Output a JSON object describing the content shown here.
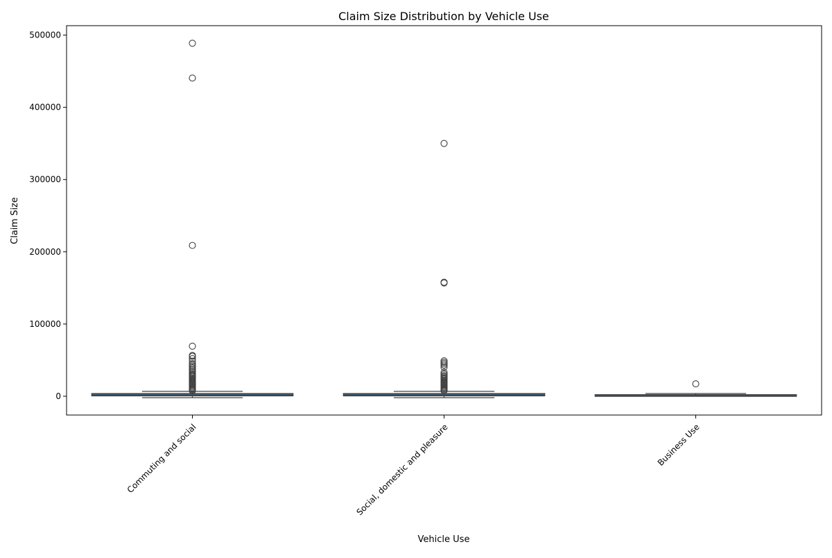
{
  "chart_data": {
    "type": "box",
    "title": "Claim Size Distribution by Vehicle Use",
    "xlabel": "Vehicle Use",
    "ylabel": "Claim Size",
    "categories": [
      "Commuting and social",
      "Social, domestic and pleasure",
      "Business Use"
    ],
    "ylim": [
      -26000,
      513000
    ],
    "yticks": [
      0,
      100000,
      200000,
      300000,
      400000,
      500000
    ],
    "ytick_labels": [
      "0",
      "100000",
      "200000",
      "300000",
      "400000",
      "500000"
    ],
    "box_color": "#3e6f94",
    "grid": false,
    "legend": "none",
    "series": [
      {
        "whisker_low": -2000,
        "q1": 500,
        "median": 1800,
        "q3": 3800,
        "whisker_high": 6800,
        "outliers": [
          488700,
          440500,
          208800,
          69300,
          56500,
          55200,
          52000,
          48500,
          45000,
          43000,
          41000,
          39000,
          37000,
          35000,
          33000,
          31000,
          29500,
          28000,
          26500,
          25000,
          23500,
          22000,
          20500,
          19000,
          17500,
          16000,
          14500,
          13000,
          11500,
          10000,
          8800,
          7500
        ]
      },
      {
        "whisker_low": -2000,
        "q1": 500,
        "median": 1800,
        "q3": 3800,
        "whisker_high": 6800,
        "outliers": [
          350000,
          157800,
          156800,
          49000,
          47000,
          45000,
          43000,
          40000,
          33000,
          30500,
          28500,
          27000,
          25500,
          24000,
          22500,
          21000,
          19500,
          18000,
          16500,
          15000,
          13500,
          12000,
          10500,
          9000,
          7800
        ]
      },
      {
        "whisker_low": 300,
        "q1": 800,
        "median": 1500,
        "q3": 2200,
        "whisker_high": 3800,
        "outliers": [
          17200
        ]
      }
    ]
  }
}
